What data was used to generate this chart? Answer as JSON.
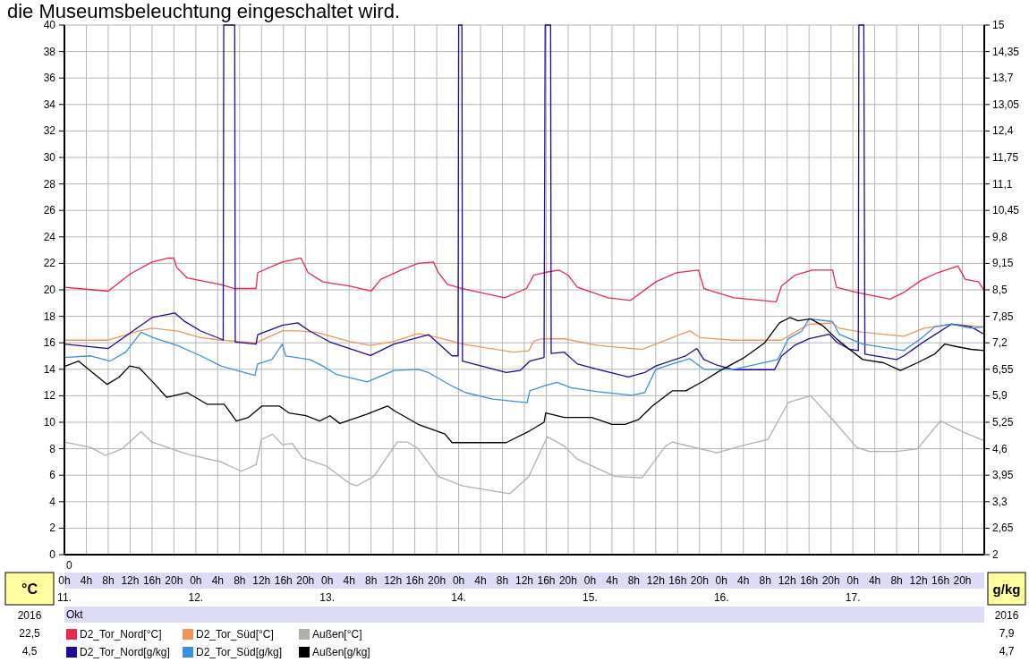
{
  "chart_data": {
    "type": "line",
    "title": "die Museumsbeleuchtung eingeschaltet wird.",
    "ylabel": "°C",
    "y2label": "g/kg",
    "x2label": "Okt",
    "annotations": [
      "0",
      "2016",
      "22,5",
      "4,5",
      "2016",
      "7,9",
      "4,7"
    ],
    "xlim": [
      "2016-10-11T00:00",
      "2016-10-18T00:00"
    ],
    "xticks": [
      {
        "value": "2016-10-11T00:00",
        "label": "0h"
      },
      {
        "value": "2016-10-11T04:00",
        "label": "4h"
      },
      {
        "value": "2016-10-11T08:00",
        "label": "8h"
      },
      {
        "value": "2016-10-11T12:00",
        "label": "12h"
      },
      {
        "value": "2016-10-11T16:00",
        "label": "16h"
      },
      {
        "value": "2016-10-11T20:00",
        "label": "20h"
      },
      {
        "value": "2016-10-12T00:00",
        "label": "0h"
      },
      {
        "value": "2016-10-12T04:00",
        "label": "4h"
      },
      {
        "value": "2016-10-12T08:00",
        "label": "8h"
      },
      {
        "value": "2016-10-12T12:00",
        "label": "12h"
      },
      {
        "value": "2016-10-12T16:00",
        "label": "16h"
      },
      {
        "value": "2016-10-12T20:00",
        "label": "20h"
      },
      {
        "value": "2016-10-13T00:00",
        "label": "0h"
      },
      {
        "value": "2016-10-13T04:00",
        "label": "4h"
      },
      {
        "value": "2016-10-13T08:00",
        "label": "8h"
      },
      {
        "value": "2016-10-13T12:00",
        "label": "12h"
      },
      {
        "value": "2016-10-13T16:00",
        "label": "16h"
      },
      {
        "value": "2016-10-13T20:00",
        "label": "20h"
      },
      {
        "value": "2016-10-14T00:00",
        "label": "0h"
      },
      {
        "value": "2016-10-14T04:00",
        "label": "4h"
      },
      {
        "value": "2016-10-14T08:00",
        "label": "8h"
      },
      {
        "value": "2016-10-14T12:00",
        "label": "12h"
      },
      {
        "value": "2016-10-14T16:00",
        "label": "16h"
      },
      {
        "value": "2016-10-14T20:00",
        "label": "20h"
      },
      {
        "value": "2016-10-15T00:00",
        "label": "0h"
      },
      {
        "value": "2016-10-15T04:00",
        "label": "4h"
      },
      {
        "value": "2016-10-15T08:00",
        "label": "8h"
      },
      {
        "value": "2016-10-15T12:00",
        "label": "12h"
      },
      {
        "value": "2016-10-15T16:00",
        "label": "16h"
      },
      {
        "value": "2016-10-15T20:00",
        "label": "20h"
      },
      {
        "value": "2016-10-16T00:00",
        "label": "0h"
      },
      {
        "value": "2016-10-16T04:00",
        "label": "4h"
      },
      {
        "value": "2016-10-16T08:00",
        "label": "8h"
      },
      {
        "value": "2016-10-16T12:00",
        "label": "12h"
      },
      {
        "value": "2016-10-16T16:00",
        "label": "16h"
      },
      {
        "value": "2016-10-16T20:00",
        "label": "20h"
      },
      {
        "value": "2016-10-17T00:00",
        "label": "0h"
      },
      {
        "value": "2016-10-17T04:00",
        "label": "4h"
      },
      {
        "value": "2016-10-17T08:00",
        "label": "8h"
      },
      {
        "value": "2016-10-17T12:00",
        "label": "12h"
      },
      {
        "value": "2016-10-17T16:00",
        "label": "16h"
      },
      {
        "value": "2016-10-17T20:00",
        "label": "20h"
      }
    ],
    "x2lim": [
      "2016-10-11T00:00",
      "2016-10-18T00:00"
    ],
    "x2ticks": [
      {
        "value": "2016-10-11",
        "label": "11."
      },
      {
        "value": "2016-10-12",
        "label": "12."
      },
      {
        "value": "2016-10-13",
        "label": "13."
      },
      {
        "value": "2016-10-14",
        "label": "14."
      },
      {
        "value": "2016-10-15",
        "label": "15."
      },
      {
        "value": "2016-10-16",
        "label": "16."
      },
      {
        "value": "2016-10-17",
        "label": "17."
      }
    ],
    "ylim": [
      0,
      40
    ],
    "yticks": [
      0,
      2,
      4,
      6,
      8,
      10,
      12,
      14,
      16,
      18,
      20,
      22,
      24,
      26,
      28,
      30,
      32,
      34,
      36,
      38,
      40
    ],
    "y2lim": [
      2,
      15
    ],
    "y2ticks": [
      2,
      {
        "value": 2.65,
        "label": "2,65"
      },
      {
        "value": 3.3,
        "label": "3,3"
      },
      {
        "value": 3.95,
        "label": "3,95"
      },
      {
        "value": 4.6,
        "label": "4,6"
      },
      {
        "value": 5.25,
        "label": "5,25"
      },
      {
        "value": 5.9,
        "label": "5,9"
      },
      {
        "value": 6.55,
        "label": "6,55"
      },
      {
        "value": 7.2,
        "label": "7,2"
      },
      {
        "value": 7.85,
        "label": "7,85"
      },
      {
        "value": 8.5,
        "label": "8,5"
      },
      {
        "value": 9.15,
        "label": "9,15"
      },
      {
        "value": 9.8,
        "label": "9,8"
      },
      {
        "value": 10.45,
        "label": "10,45"
      },
      {
        "value": 11.1,
        "label": "11,1"
      },
      {
        "value": 11.75,
        "label": "11,75"
      },
      {
        "value": 12.4,
        "label": "12,4"
      },
      {
        "value": 13.05,
        "label": "13,05"
      },
      {
        "value": 13.7,
        "label": "13,7"
      },
      {
        "value": 14.35,
        "label": "14,35"
      },
      15
    ],
    "grid": true,
    "legend": "bottom",
    "series": [
      {
        "name": "D2_Tor_Nord[°C]",
        "color": "#e8284f",
        "x": [
          "2016-10-11T00:00",
          "2016-10-11T02:30",
          "2016-10-11T08:00",
          "2016-10-11T12:00",
          "2016-10-11T16:00",
          "2016-10-11T19:00",
          "2016-10-11T20:00",
          "2016-10-11T20:30",
          "2016-10-11T22:24",
          "2016-10-12T04:36",
          "2016-10-12T07:00",
          "2016-10-12T11:00",
          "2016-10-12T11:18",
          "2016-10-12T15:48",
          "2016-10-12T19:12",
          "2016-10-12T20:30",
          "2016-10-12T23:12",
          "2016-10-13T04:00",
          "2016-10-13T08:00",
          "2016-10-13T09:48",
          "2016-10-13T13:30",
          "2016-10-13T16:36",
          "2016-10-13T19:24",
          "2016-10-13T20:18",
          "2016-10-13T22:00",
          "2016-10-14T00:42",
          "2016-10-14T08:24",
          "2016-10-14T12:24",
          "2016-10-14T13:42",
          "2016-10-14T15:36",
          "2016-10-14T18:18",
          "2016-10-14T20:00",
          "2016-10-14T21:42",
          "2016-10-15T03:18",
          "2016-10-15T07:24",
          "2016-10-15T12:00",
          "2016-10-15T15:48",
          "2016-10-15T19:48",
          "2016-10-15T20:48",
          "2016-10-16T02:18",
          "2016-10-16T10:00",
          "2016-10-16T11:00",
          "2016-10-16T13:24",
          "2016-10-16T16:36",
          "2016-10-16T20:18",
          "2016-10-16T21:00",
          "2016-10-17T00:42",
          "2016-10-17T06:48",
          "2016-10-17T09:18",
          "2016-10-17T12:24",
          "2016-10-17T15:30",
          "2016-10-17T19:12",
          "2016-10-17T20:30",
          "2016-10-17T23:00",
          "2016-10-18T00:00"
        ],
        "values": [
          20.2,
          20.1,
          19.9,
          21.2,
          22.1,
          22.4,
          22.4,
          21.7,
          20.9,
          20.4,
          20.1,
          20.1,
          21.3,
          22.1,
          22.4,
          21.3,
          20.6,
          20.3,
          19.9,
          20.8,
          21.5,
          22.0,
          22.1,
          21.3,
          20.4,
          20.1,
          19.4,
          20.1,
          21.1,
          21.3,
          21.5,
          21.1,
          20.2,
          19.4,
          19.2,
          20.6,
          21.3,
          21.5,
          20.1,
          19.4,
          19.1,
          20.3,
          21.1,
          21.5,
          21.5,
          20.2,
          19.8,
          19.3,
          19.8,
          20.7,
          21.3,
          21.8,
          20.8,
          20.6,
          19.9
        ]
      },
      {
        "name": "D2_Tor_Süd[°C]",
        "color": "#f0955a",
        "x": [
          "2016-10-11T00:00",
          "2016-10-11T08:00",
          "2016-10-11T13:42",
          "2016-10-11T16:00",
          "2016-10-11T20:30",
          "2016-10-12T00:54",
          "2016-10-12T04:36",
          "2016-10-12T11:00",
          "2016-10-12T15:48",
          "2016-10-12T18:48",
          "2016-10-12T22:00",
          "2016-10-13T04:00",
          "2016-10-13T07:54",
          "2016-10-13T12:12",
          "2016-10-13T16:36",
          "2016-10-13T20:18",
          "2016-10-14T00:42",
          "2016-10-14T10:00",
          "2016-10-14T12:48",
          "2016-10-14T13:42",
          "2016-10-14T15:00",
          "2016-10-14T19:18",
          "2016-10-15T01:24",
          "2016-10-15T09:30",
          "2016-10-15T12:00",
          "2016-10-15T18:12",
          "2016-10-15T20:06",
          "2016-10-16T02:00",
          "2016-10-16T11:00",
          "2016-10-16T14:42",
          "2016-10-16T16:00",
          "2016-10-16T20:18",
          "2016-10-16T21:30",
          "2016-10-17T01:48",
          "2016-10-17T09:18",
          "2016-10-17T13:00",
          "2016-10-17T18:00",
          "2016-10-18T00:00"
        ],
        "values": [
          16.2,
          16.2,
          16.9,
          17.1,
          16.9,
          16.4,
          16.2,
          16.0,
          16.9,
          16.9,
          16.8,
          16.1,
          15.8,
          16.1,
          16.7,
          16.4,
          15.9,
          15.3,
          15.4,
          16.1,
          16.3,
          16.3,
          15.8,
          15.5,
          15.9,
          16.9,
          16.4,
          16.2,
          16.2,
          17.1,
          17.4,
          17.5,
          17.1,
          16.8,
          16.5,
          17.1,
          17.4,
          17.2
        ]
      },
      {
        "name": "Außen[°C]",
        "color": "#b0b0a8",
        "x": [
          "2016-10-11T00:00",
          "2016-10-11T04:48",
          "2016-10-11T07:30",
          "2016-10-11T10:36",
          "2016-10-11T14:00",
          "2016-10-11T16:00",
          "2016-10-11T22:24",
          "2016-10-12T04:36",
          "2016-10-12T08:18",
          "2016-10-12T11:00",
          "2016-10-12T12:00",
          "2016-10-12T14:00",
          "2016-10-12T15:48",
          "2016-10-12T17:36",
          "2016-10-12T19:30",
          "2016-10-12T23:48",
          "2016-10-13T04:00",
          "2016-10-13T05:24",
          "2016-10-13T08:30",
          "2016-10-13T12:48",
          "2016-10-13T14:42",
          "2016-10-13T16:36",
          "2016-10-13T20:18",
          "2016-10-14T00:42",
          "2016-10-14T09:18",
          "2016-10-14T12:48",
          "2016-10-14T16:12",
          "2016-10-14T19:18",
          "2016-10-14T21:42",
          "2016-10-15T04:36",
          "2016-10-15T09:30",
          "2016-10-15T13:48",
          "2016-10-15T15:00",
          "2016-10-15T20:06",
          "2016-10-15T23:12",
          "2016-10-16T03:30",
          "2016-10-16T08:30",
          "2016-10-16T12:12",
          "2016-10-16T16:18",
          "2016-10-16T20:18",
          "2016-10-17T00:42",
          "2016-10-17T03:00",
          "2016-10-17T08:00",
          "2016-10-17T11:48",
          "2016-10-17T16:00",
          "2016-10-17T20:30",
          "2016-10-18T00:00"
        ],
        "values": [
          8.5,
          8.1,
          7.5,
          8.0,
          9.3,
          8.5,
          7.6,
          7.0,
          6.3,
          6.8,
          8.7,
          9.1,
          8.3,
          8.4,
          7.3,
          6.7,
          5.4,
          5.2,
          5.9,
          8.5,
          8.5,
          8.0,
          5.9,
          5.2,
          4.6,
          5.9,
          8.9,
          8.2,
          7.2,
          5.9,
          5.8,
          8.2,
          8.5,
          8.0,
          7.7,
          8.2,
          8.7,
          11.5,
          12.0,
          10.2,
          8.1,
          7.8,
          7.8,
          8.0,
          10.1,
          9.2,
          8.6
        ]
      },
      {
        "name": "D2_Tor_Nord[g/kg]",
        "color": "#1e0a96",
        "axis": "y2",
        "x": [
          "2016-10-11T00:00",
          "2016-10-11T08:00",
          "2016-10-11T12:30",
          "2016-10-11T16:00",
          "2016-10-11T20:12",
          "2016-10-11T21:48",
          "2016-10-12T00:54",
          "2016-10-12T05:00",
          "2016-10-12T05:06",
          "2016-10-12T07:06",
          "2016-10-12T07:12",
          "2016-10-12T11:00",
          "2016-10-12T11:18",
          "2016-10-12T15:48",
          "2016-10-12T18:36",
          "2016-10-12T20:48",
          "2016-10-13T00:30",
          "2016-10-13T07:54",
          "2016-10-13T12:12",
          "2016-10-13T18:30",
          "2016-10-13T21:30",
          "2016-10-13T22:48",
          "2016-10-13T23:54",
          "2016-10-14T00:00",
          "2016-10-14T00:36",
          "2016-10-14T00:42",
          "2016-10-14T08:42",
          "2016-10-14T11:12",
          "2016-10-14T13:00",
          "2016-10-14T15:36",
          "2016-10-14T15:48",
          "2016-10-14T16:48",
          "2016-10-14T16:54",
          "2016-10-14T19:18",
          "2016-10-14T21:42",
          "2016-10-15T01:24",
          "2016-10-15T07:00",
          "2016-10-15T10:00",
          "2016-10-15T12:00",
          "2016-10-15T17:30",
          "2016-10-15T19:30",
          "2016-10-15T20:48",
          "2016-10-15T23:12",
          "2016-10-16T02:18",
          "2016-10-16T09:42",
          "2016-10-16T11:00",
          "2016-10-16T13:24",
          "2016-10-16T16:00",
          "2016-10-16T19:42",
          "2016-10-16T21:00",
          "2016-10-16T23:24",
          "2016-10-17T01:00",
          "2016-10-17T01:06",
          "2016-10-17T02:00",
          "2016-10-17T02:12",
          "2016-10-17T08:00",
          "2016-10-17T09:18",
          "2016-10-17T13:00",
          "2016-10-17T18:00",
          "2016-10-17T21:36",
          "2016-10-18T00:00"
        ],
        "values": [
          7.17,
          7.06,
          7.49,
          7.82,
          7.93,
          7.74,
          7.49,
          7.27,
          15,
          15,
          7.22,
          7.17,
          7.4,
          7.63,
          7.69,
          7.49,
          7.22,
          6.89,
          7.17,
          7.4,
          7.04,
          6.88,
          6.88,
          15,
          15,
          6.75,
          6.47,
          6.52,
          6.75,
          6.84,
          15,
          15,
          6.94,
          6.97,
          6.68,
          6.55,
          6.36,
          6.47,
          6.63,
          6.88,
          7.06,
          6.79,
          6.65,
          6.54,
          6.54,
          6.88,
          7.14,
          7.3,
          7.41,
          7.22,
          7.04,
          7.01,
          15,
          15,
          6.92,
          6.79,
          6.88,
          7.23,
          7.66,
          7.59,
          7.41
        ]
      },
      {
        "name": "D2_Tor_Süd[g/kg]",
        "color": "#3a90e0",
        "axis": "y2",
        "x": [
          "2016-10-11T00:00",
          "2016-10-11T04:48",
          "2016-10-11T08:18",
          "2016-10-11T11:12",
          "2016-10-11T14:00",
          "2016-10-11T16:12",
          "2016-10-11T20:30",
          "2016-10-12T00:54",
          "2016-10-12T04:36",
          "2016-10-12T10:48",
          "2016-10-12T11:18",
          "2016-10-12T13:54",
          "2016-10-12T15:48",
          "2016-10-12T16:24",
          "2016-10-12T20:48",
          "2016-10-12T23:12",
          "2016-10-13T01:42",
          "2016-10-13T07:18",
          "2016-10-13T12:12",
          "2016-10-13T16:36",
          "2016-10-13T18:30",
          "2016-10-13T22:48",
          "2016-10-14T01:12",
          "2016-10-14T06:12",
          "2016-10-14T12:30",
          "2016-10-14T13:00",
          "2016-10-14T15:36",
          "2016-10-14T18:00",
          "2016-10-14T20:30",
          "2016-10-15T01:24",
          "2016-10-15T07:42",
          "2016-10-15T10:00",
          "2016-10-15T12:00",
          "2016-10-15T15:00",
          "2016-10-15T18:12",
          "2016-10-15T20:48",
          "2016-10-16T02:18",
          "2016-10-16T10:18",
          "2016-10-16T12:12",
          "2016-10-16T14:42",
          "2016-10-16T16:00",
          "2016-10-16T20:18",
          "2016-10-16T21:30",
          "2016-10-17T01:48",
          "2016-10-17T09:18",
          "2016-10-17T12:24",
          "2016-10-17T14:54",
          "2016-10-17T18:00",
          "2016-10-17T21:36",
          "2016-10-18T00:00"
        ],
        "values": [
          6.84,
          6.88,
          6.75,
          6.97,
          7.46,
          7.33,
          7.14,
          6.88,
          6.63,
          6.4,
          6.68,
          6.79,
          7.17,
          6.88,
          6.79,
          6.63,
          6.42,
          6.24,
          6.52,
          6.55,
          6.47,
          6.14,
          5.98,
          5.82,
          5.73,
          6.02,
          6.14,
          6.23,
          6.1,
          6.0,
          5.91,
          5.98,
          6.55,
          6.68,
          6.81,
          6.55,
          6.55,
          6.79,
          7.3,
          7.49,
          7.79,
          7.72,
          7.41,
          7.17,
          7.01,
          7.3,
          7.59,
          7.66,
          7.56,
          7.59
        ]
      },
      {
        "name": "Außen[g/kg]",
        "color": "#000000",
        "axis": "y2",
        "x": [
          "2016-10-11T00:00",
          "2016-10-11T02:36",
          "2016-10-11T07:48",
          "2016-10-11T10:00",
          "2016-10-11T11:54",
          "2016-10-11T13:42",
          "2016-10-11T16:12",
          "2016-10-11T18:42",
          "2016-10-11T22:24",
          "2016-10-12T02:06",
          "2016-10-12T05:12",
          "2016-10-12T07:24",
          "2016-10-12T09:36",
          "2016-10-12T12:06",
          "2016-10-12T15:12",
          "2016-10-12T17:00",
          "2016-10-12T20:06",
          "2016-10-12T22:36",
          "2016-10-13T00:30",
          "2016-10-13T02:18",
          "2016-10-13T07:18",
          "2016-10-13T11:00",
          "2016-10-13T12:18",
          "2016-10-13T16:36",
          "2016-10-13T21:30",
          "2016-10-13T22:48",
          "2016-10-14T00:42",
          "2016-10-14T08:42",
          "2016-10-14T13:00",
          "2016-10-14T15:36",
          "2016-10-14T15:54",
          "2016-10-14T19:18",
          "2016-10-15T00:18",
          "2016-10-15T04:00",
          "2016-10-15T06:24",
          "2016-10-15T08:54",
          "2016-10-15T11:24",
          "2016-10-15T15:00",
          "2016-10-15T17:30",
          "2016-10-15T20:42",
          "2016-10-15T23:48",
          "2016-10-16T04:12",
          "2016-10-16T07:54",
          "2016-10-16T10:36",
          "2016-10-16T12:30",
          "2016-10-16T14:00",
          "2016-10-16T16:18",
          "2016-10-16T18:30",
          "2016-10-16T21:00",
          "2016-10-16T23:24",
          "2016-10-17T01:48",
          "2016-10-17T05:36",
          "2016-10-17T08:42",
          "2016-10-17T11:48",
          "2016-10-17T14:54",
          "2016-10-17T16:48",
          "2016-10-17T19:12",
          "2016-10-17T21:36",
          "2016-10-18T00:00"
        ],
        "values": [
          6.62,
          6.75,
          6.18,
          6.36,
          6.63,
          6.58,
          6.23,
          5.86,
          5.98,
          5.69,
          5.69,
          5.28,
          5.37,
          5.65,
          5.65,
          5.48,
          5.41,
          5.28,
          5.41,
          5.22,
          5.45,
          5.65,
          5.53,
          5.2,
          4.96,
          4.75,
          4.75,
          4.75,
          5.04,
          5.25,
          5.48,
          5.37,
          5.37,
          5.2,
          5.2,
          5.32,
          5.65,
          6.02,
          6.02,
          6.26,
          6.52,
          6.84,
          7.2,
          7.69,
          7.82,
          7.74,
          7.79,
          7.62,
          7.3,
          7.04,
          6.79,
          6.71,
          6.52,
          6.71,
          6.92,
          7.17,
          7.1,
          7.04,
          7.01
        ]
      }
    ]
  }
}
